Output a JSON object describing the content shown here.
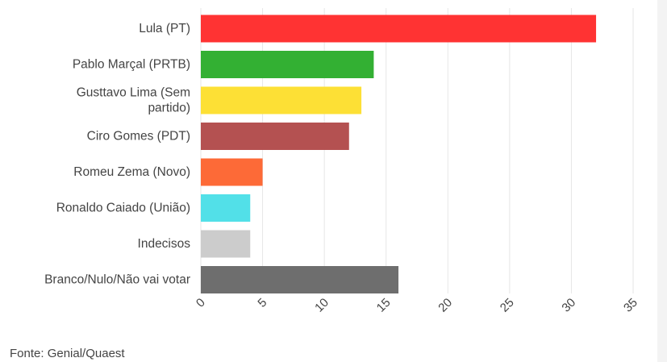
{
  "chart_data": {
    "type": "bar",
    "orientation": "horizontal",
    "categories": [
      "Lula (PT)",
      "Pablo Marçal (PRTB)",
      "Gusttavo Lima (Sem partido)",
      "Ciro Gomes (PDT)",
      "Romeu Zema (Novo)",
      "Ronaldo Caiado (União)",
      "Indecisos",
      "Branco/Nulo/Não vai votar"
    ],
    "category_label_lines": [
      [
        "Lula (PT)"
      ],
      [
        "Pablo Marçal (PRTB)"
      ],
      [
        "Gusttavo Lima (Sem",
        "partido)"
      ],
      [
        "Ciro Gomes (PDT)"
      ],
      [
        "Romeu Zema (Novo)"
      ],
      [
        "Ronaldo Caiado (União)"
      ],
      [
        "Indecisos"
      ],
      [
        "Branco/Nulo/Não vai votar"
      ]
    ],
    "values": [
      32,
      14,
      13,
      12,
      5,
      4,
      4,
      16
    ],
    "colors": [
      "#ff3333",
      "#33b033",
      "#fde035",
      "#b45151",
      "#fd6a37",
      "#52e0e8",
      "#cccccc",
      "#6e6e6e"
    ],
    "xlim": [
      0,
      35
    ],
    "xticks": [
      0,
      5,
      10,
      15,
      20,
      25,
      30,
      35
    ],
    "grid": true,
    "title": "",
    "xlabel": "",
    "ylabel": ""
  },
  "source": "Fonte: Genial/Quaest"
}
